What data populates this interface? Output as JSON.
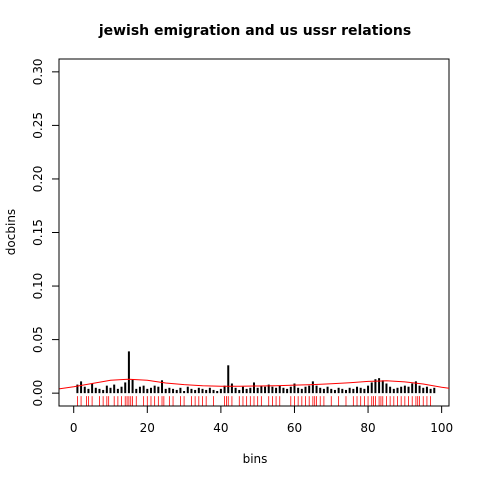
{
  "chart_data": {
    "type": "bar",
    "title": "jewish emigration and us ussr relations",
    "xlabel": "bins",
    "ylabel": "docbins",
    "xlim": [
      -4,
      102
    ],
    "ylim": [
      -0.012,
      0.312
    ],
    "x_ticks": [
      0,
      20,
      40,
      60,
      80,
      100
    ],
    "y_ticks": [
      0.0,
      0.05,
      0.1,
      0.15,
      0.2,
      0.25,
      0.3
    ],
    "grid": false,
    "bars": {
      "x": [
        1,
        2,
        3,
        4,
        5,
        6,
        7,
        8,
        9,
        10,
        11,
        12,
        13,
        14,
        15,
        16,
        17,
        18,
        19,
        20,
        21,
        22,
        23,
        24,
        25,
        26,
        27,
        28,
        29,
        30,
        31,
        32,
        33,
        34,
        35,
        36,
        37,
        38,
        39,
        40,
        41,
        42,
        43,
        44,
        45,
        46,
        47,
        48,
        49,
        50,
        51,
        52,
        53,
        54,
        55,
        56,
        57,
        58,
        59,
        60,
        61,
        62,
        63,
        64,
        65,
        66,
        67,
        68,
        69,
        70,
        71,
        72,
        73,
        74,
        75,
        76,
        77,
        78,
        79,
        80,
        81,
        82,
        83,
        84,
        85,
        86,
        87,
        88,
        89,
        90,
        91,
        92,
        93,
        94,
        95,
        96,
        97,
        98
      ],
      "values": [
        0.008,
        0.011,
        0.006,
        0.004,
        0.009,
        0.005,
        0.004,
        0.003,
        0.007,
        0.005,
        0.008,
        0.004,
        0.006,
        0.01,
        0.039,
        0.013,
        0.004,
        0.006,
        0.007,
        0.004,
        0.005,
        0.007,
        0.006,
        0.012,
        0.004,
        0.005,
        0.004,
        0.003,
        0.005,
        0.002,
        0.006,
        0.004,
        0.003,
        0.005,
        0.004,
        0.003,
        0.005,
        0.003,
        0.002,
        0.004,
        0.007,
        0.026,
        0.009,
        0.005,
        0.003,
        0.006,
        0.004,
        0.005,
        0.01,
        0.005,
        0.007,
        0.006,
        0.008,
        0.006,
        0.005,
        0.007,
        0.005,
        0.004,
        0.006,
        0.009,
        0.005,
        0.004,
        0.006,
        0.007,
        0.011,
        0.007,
        0.005,
        0.004,
        0.006,
        0.004,
        0.003,
        0.005,
        0.004,
        0.003,
        0.005,
        0.004,
        0.006,
        0.005,
        0.004,
        0.007,
        0.01,
        0.013,
        0.014,
        0.012,
        0.009,
        0.006,
        0.004,
        0.005,
        0.006,
        0.007,
        0.006,
        0.009,
        0.011,
        0.007,
        0.005,
        0.006,
        0.004,
        0.005
      ]
    },
    "density_curve": {
      "x": [
        -4,
        0,
        5,
        10,
        15,
        20,
        25,
        30,
        35,
        40,
        45,
        50,
        55,
        60,
        65,
        70,
        75,
        80,
        85,
        90,
        95,
        100,
        102
      ],
      "y": [
        0.004,
        0.006,
        0.009,
        0.012,
        0.013,
        0.012,
        0.0095,
        0.008,
        0.007,
        0.0065,
        0.0065,
        0.0067,
        0.007,
        0.0075,
        0.008,
        0.0087,
        0.0097,
        0.011,
        0.0115,
        0.0105,
        0.0085,
        0.0055,
        0.0045
      ]
    },
    "rug": {
      "x": [
        1,
        2,
        3.5,
        4,
        5,
        7,
        8,
        9,
        9.5,
        11,
        12,
        13,
        14,
        14.5,
        15,
        15.5,
        16,
        17,
        19,
        20,
        21,
        22,
        23,
        24,
        24.5,
        26,
        27,
        29,
        30,
        32,
        33,
        34,
        35,
        36,
        38,
        41,
        41.5,
        42,
        43,
        45,
        46,
        47,
        48,
        49,
        50,
        51,
        53,
        54,
        55,
        56,
        59,
        60,
        61,
        62,
        63,
        64,
        65,
        65.5,
        66,
        67,
        68,
        70,
        72,
        74,
        76,
        77,
        78,
        79,
        80,
        81,
        81.5,
        82,
        83,
        83.5,
        84,
        85,
        86,
        87,
        88,
        89,
        90,
        91,
        92,
        93,
        93.5,
        94,
        95,
        96,
        97
      ]
    },
    "colors": {
      "bars": "#000000",
      "curve": "#ff0000",
      "rug": "#ff0000"
    }
  }
}
